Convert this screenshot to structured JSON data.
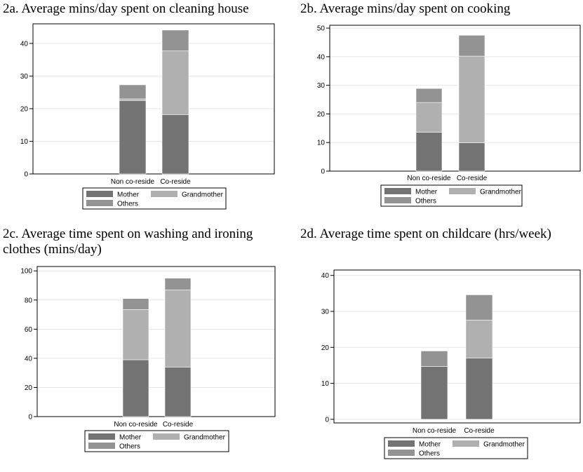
{
  "chart_data": [
    {
      "type": "bar",
      "stacked": true,
      "title": "2a. Average mins/day spent on cleaning house",
      "categories": [
        "Non co-reside",
        "Co-reside"
      ],
      "ylim": [
        0,
        46
      ],
      "yticks": [
        0,
        10,
        20,
        30,
        40
      ],
      "grid": true,
      "legend_position": "bottom",
      "series": [
        {
          "name": "Mother",
          "values": [
            22.5,
            18.2
          ]
        },
        {
          "name": "Grandmother",
          "values": [
            0.5,
            19.5
          ]
        },
        {
          "name": "Others",
          "values": [
            4.3,
            6.4
          ]
        }
      ]
    },
    {
      "type": "bar",
      "stacked": true,
      "title": "2b. Average mins/day spent on cooking",
      "categories": [
        "Non co-reside",
        "Co-reside"
      ],
      "ylim": [
        0,
        51
      ],
      "yticks": [
        0,
        10,
        20,
        30,
        40,
        50
      ],
      "grid": true,
      "legend_position": "bottom",
      "series": [
        {
          "name": "Mother",
          "values": [
            13.6,
            9.9
          ]
        },
        {
          "name": "Grandmother",
          "values": [
            10.4,
            30.3
          ]
        },
        {
          "name": "Others",
          "values": [
            4.9,
            7.3
          ]
        }
      ]
    },
    {
      "type": "bar",
      "stacked": true,
      "title": [
        "2c. Average time spent on washing and ironing",
        "clothes (mins/day)"
      ],
      "categories": [
        "Non co-reside",
        "Co-reside"
      ],
      "ylim": [
        0,
        103
      ],
      "yticks": [
        0,
        20,
        40,
        60,
        80,
        100
      ],
      "grid": true,
      "legend_position": "bottom",
      "series": [
        {
          "name": "Mother",
          "values": [
            39,
            34
          ]
        },
        {
          "name": "Grandmother",
          "values": [
            34.5,
            53
          ]
        },
        {
          "name": "Others",
          "values": [
            7.5,
            8
          ]
        }
      ]
    },
    {
      "type": "bar",
      "stacked": true,
      "title": "2d. Average time spent on childcare (hrs/week)",
      "categories": [
        "Non co-reside",
        "Co-reside"
      ],
      "ylim": [
        -1,
        41.5
      ],
      "yticks": [
        0,
        10,
        20,
        30,
        40
      ],
      "grid": true,
      "legend_position": "bottom",
      "series": [
        {
          "name": "Mother",
          "values": [
            14.7,
            17
          ]
        },
        {
          "name": "Grandmother",
          "values": [
            0,
            10.6
          ]
        },
        {
          "name": "Others",
          "values": [
            4.3,
            7
          ]
        }
      ]
    }
  ],
  "colors": {
    "Mother": "#737373",
    "Grandmother": "#b0b0b0",
    "Others": "#939393",
    "grid": "#e6e6e6",
    "axis": "#000000"
  }
}
